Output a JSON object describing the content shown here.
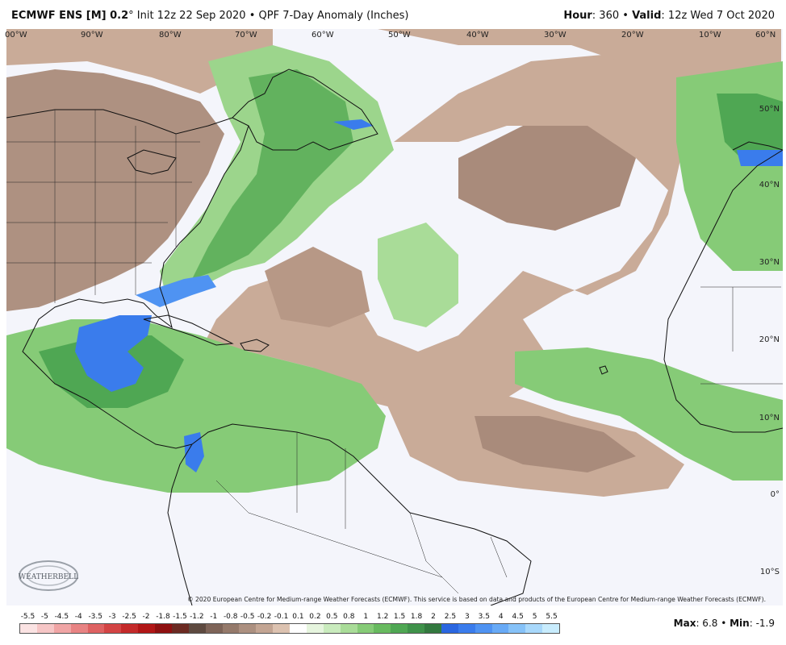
{
  "header": {
    "model": "ECMWF ENS [M] 0.2",
    "degree": "°",
    "init": " Init 12z 22 Sep 2020 • QPF 7-Day Anomaly (Inches)",
    "hour_label": "Hour",
    "hour_value": ": 360 • ",
    "valid_label": "Valid",
    "valid_value": ": 12z Wed 7 Oct 2020"
  },
  "longitude_labels": [
    "00°W",
    "90°W",
    "80°W",
    "70°W",
    "60°W",
    "50°W",
    "40°W",
    "30°W",
    "20°W",
    "10°W",
    "60°N"
  ],
  "latitude_labels": [
    "50°N",
    "40°N",
    "30°N",
    "20°N",
    "10°N",
    "0°",
    "10°S"
  ],
  "copyright": "© 2020 European Centre for Medium-range Weather Forecasts (ECMWF). This service is based on data and products of the European Centre for Medium-range Weather Forecasts (ECMWF).",
  "logo_text": "WEATHERBELL",
  "legend": {
    "labels": [
      "-5.5",
      "-5",
      "-4.5",
      "-4",
      "-3.5",
      "-3",
      "-2.5",
      "-2",
      "-1.8",
      "-1.5",
      "-1.2",
      "-1",
      "-0.8",
      "-0.5",
      "-0.2",
      "-0.1",
      "0.1",
      "0.2",
      "0.5",
      "0.8",
      "1",
      "1.2",
      "1.5",
      "1.8",
      "2",
      "2.5",
      "3",
      "3.5",
      "4",
      "4.5",
      "5",
      "5.5"
    ],
    "colors": [
      "#fbe3e3",
      "#f6c6c6",
      "#f0a5a5",
      "#e88383",
      "#de6262",
      "#d34444",
      "#c42a2a",
      "#b11616",
      "#8e1010",
      "#6b2a22",
      "#5e4a40",
      "#7e6458",
      "#957a6b",
      "#ac9080",
      "#c3a593",
      "#dcc2b0",
      "#ffffff",
      "#e6f5de",
      "#c9ebbd",
      "#a9dc98",
      "#86cb77",
      "#68ba5f",
      "#4fa753",
      "#3f924a",
      "#33793f",
      "#2a66e0",
      "#3a7cec",
      "#4f93f2",
      "#68aaf6",
      "#86c2f8",
      "#a8d8fb",
      "#c8ecfd"
    ]
  },
  "max_label": "Max",
  "max_value": ": 6.8 • ",
  "min_label": "Min",
  "min_value": ": -1.9"
}
